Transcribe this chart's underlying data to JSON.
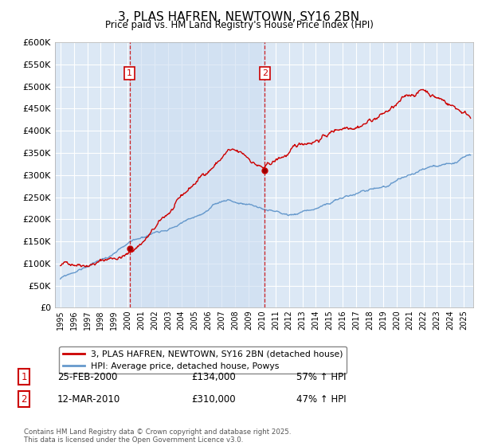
{
  "title": "3, PLAS HAFREN, NEWTOWN, SY16 2BN",
  "subtitle": "Price paid vs. HM Land Registry's House Price Index (HPI)",
  "ylim": [
    0,
    600000
  ],
  "yticks": [
    0,
    50000,
    100000,
    150000,
    200000,
    250000,
    300000,
    350000,
    400000,
    450000,
    500000,
    550000,
    600000
  ],
  "ytick_labels": [
    "£0",
    "£50K",
    "£100K",
    "£150K",
    "£200K",
    "£250K",
    "£300K",
    "£350K",
    "£400K",
    "£450K",
    "£500K",
    "£550K",
    "£600K"
  ],
  "sale1_date": "25-FEB-2000",
  "sale1_price": 134000,
  "sale1_pct": "57% ↑ HPI",
  "sale2_date": "12-MAR-2010",
  "sale2_price": 310000,
  "sale2_pct": "47% ↑ HPI",
  "legend_line1": "3, PLAS HAFREN, NEWTOWN, SY16 2BN (detached house)",
  "legend_line2": "HPI: Average price, detached house, Powys",
  "footer": "Contains HM Land Registry data © Crown copyright and database right 2025.\nThis data is licensed under the Open Government Licence v3.0.",
  "line_color_red": "#cc0000",
  "line_color_blue": "#6699cc",
  "vline_color": "#cc0000",
  "bg_color": "#dce8f5",
  "shade_color": "#ccddf0",
  "grid_color": "#ffffff",
  "sale1_x": 2000.15,
  "sale2_x": 2010.2,
  "xlim_left": 1994.6,
  "xlim_right": 2025.7
}
